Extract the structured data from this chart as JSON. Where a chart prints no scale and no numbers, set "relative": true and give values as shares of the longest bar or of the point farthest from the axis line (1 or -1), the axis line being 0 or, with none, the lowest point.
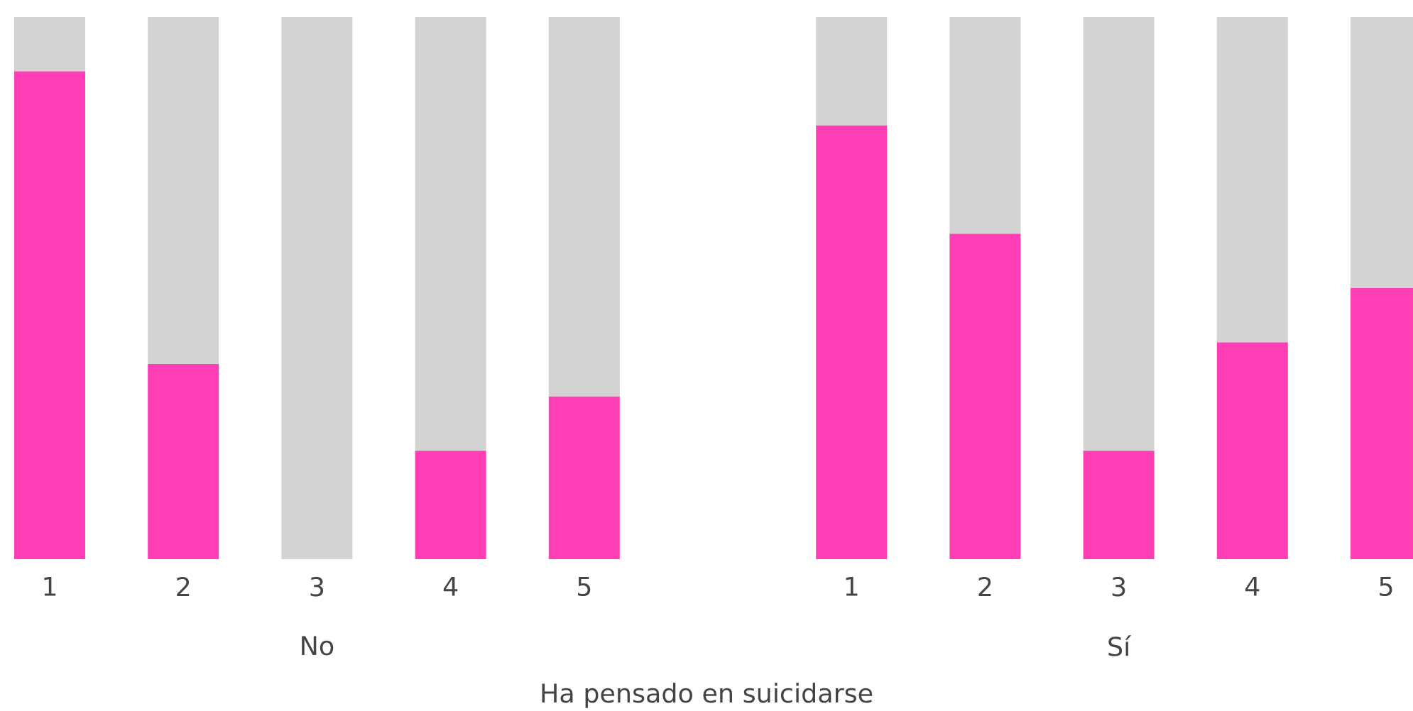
{
  "chart_data": {
    "type": "bar",
    "stacked": true,
    "relative": true,
    "xlabel": "Ha pensado en suicidarse",
    "categories": [
      "1",
      "2",
      "3",
      "4",
      "5",
      null,
      "1",
      "2",
      "3",
      "4",
      "5"
    ],
    "series": [
      {
        "color": "#ff3eb5",
        "values": [
          0.9,
          0.36,
          0,
          0.2,
          0.3,
          null,
          0.8,
          0.6,
          0.2,
          0.4,
          0.5
        ]
      },
      {
        "color": "#d3d3d3",
        "values": [
          0.1,
          0.64,
          1,
          0.8,
          0.7,
          null,
          0.2,
          0.4,
          0.8,
          0.6,
          0.5
        ]
      }
    ],
    "annotations": [
      "No",
      "Sí"
    ]
  }
}
